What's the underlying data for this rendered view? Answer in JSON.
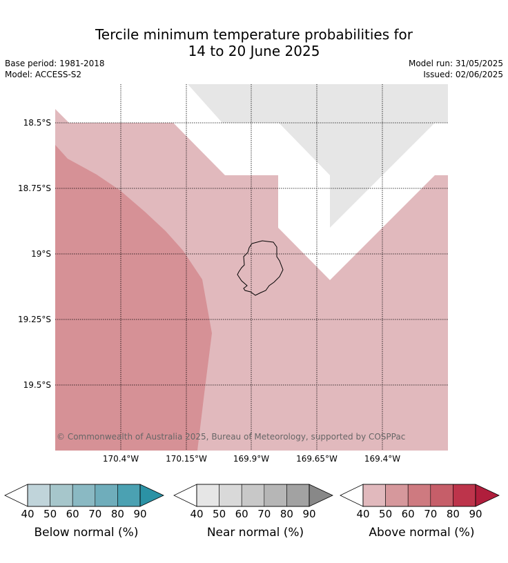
{
  "title_line1": "Tercile minimum temperature probabilities for",
  "title_line2": "14 to 20 June 2025",
  "base_period": "Base period: 1981-2018",
  "model": "Model: ACCESS-S2",
  "model_run": "Model run: 31/05/2025",
  "issued": "Issued: 02/06/2025",
  "copyright": "© Commonwealth of Australia 2025, Bureau of Meteorology, supported by COSPPac",
  "lat_labels": [
    "18.5°S",
    "18.75°S",
    "19°S",
    "19.25°S",
    "19.5°S"
  ],
  "lon_labels": [
    "170.4°W",
    "170.15°W",
    "169.9°W",
    "169.65°W",
    "169.4°W"
  ],
  "colors": {
    "near_normal_region": "#e6e6e6",
    "above_40_50": "#e1b9bd",
    "above_50_60": "#d69196"
  },
  "colorbars": [
    {
      "label": "Below normal (%)",
      "ticks": [
        "40",
        "50",
        "60",
        "70",
        "80",
        "90"
      ],
      "colors": [
        "#c0d4da",
        "#a6c6cb",
        "#8ab9c3",
        "#6fadbb",
        "#4ba1b2",
        "#2b92a5"
      ]
    },
    {
      "label": "Near normal (%)",
      "ticks": [
        "40",
        "50",
        "60",
        "70",
        "80",
        "90"
      ],
      "colors": [
        "#e6e6e6",
        "#d9d9d9",
        "#c8c8c8",
        "#b6b6b6",
        "#a2a2a2",
        "#888888"
      ]
    },
    {
      "label": "Above normal (%)",
      "ticks": [
        "40",
        "50",
        "60",
        "70",
        "80",
        "90"
      ],
      "colors": [
        "#e1b9bd",
        "#d6989c",
        "#ce7a80",
        "#c65e69",
        "#bd344b",
        "#b01e3c"
      ]
    }
  ]
}
